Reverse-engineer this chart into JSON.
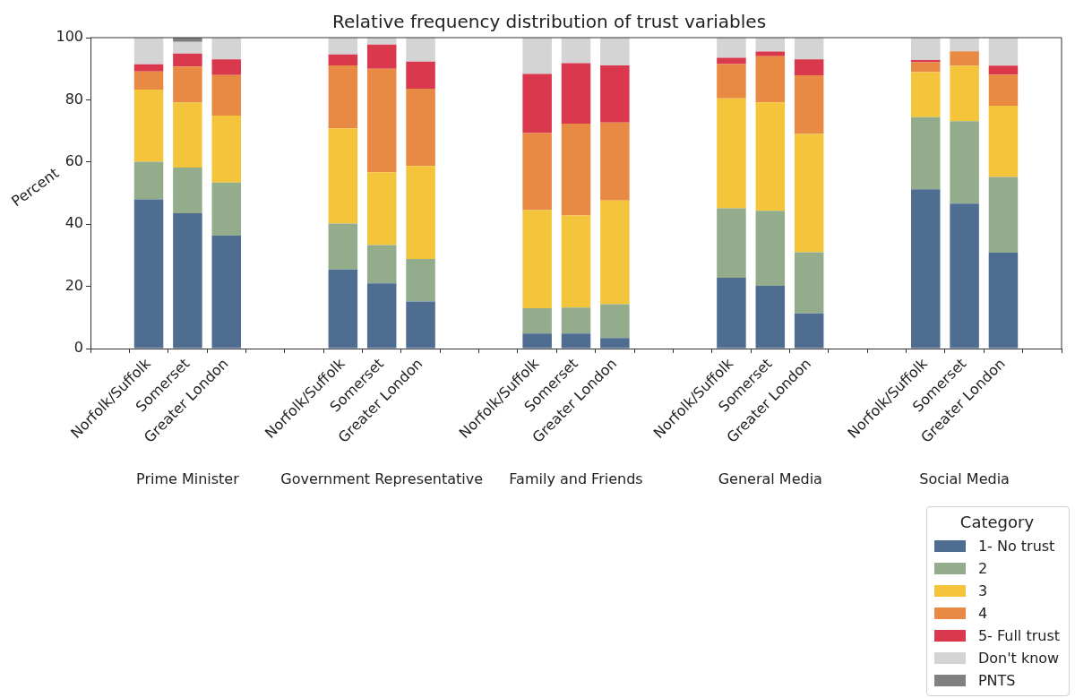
{
  "chart_data": {
    "type": "bar",
    "stacked": true,
    "title": "Relative frequency distribution of trust variables",
    "ylabel": "Percent",
    "legend_title": "Category",
    "legend": "bottom right",
    "categories": [
      null,
      "Norfolk/Suffolk",
      "Somerset",
      "Greater London",
      null,
      null,
      "Norfolk/Suffolk",
      "Somerset",
      "Greater London",
      null,
      null,
      "Norfolk/Suffolk",
      "Somerset",
      "Greater London",
      null,
      null,
      "Norfolk/Suffolk",
      "Somerset",
      "Greater London",
      null,
      null,
      "Norfolk/Suffolk",
      "Somerset",
      "Greater London",
      null
    ],
    "annotations": [
      "Prime Minister",
      "Government Representative",
      "Family and Friends",
      "General Media",
      "Social Media"
    ],
    "ylim": [
      0,
      100
    ],
    "yticks": [
      0,
      20,
      40,
      60,
      80,
      100
    ],
    "grid": false,
    "series": [
      {
        "name": "1- No trust",
        "color": "#4f6d91",
        "values": [
          null,
          48.0,
          43.5,
          36.3,
          null,
          null,
          25.4,
          21.0,
          15.1,
          null,
          null,
          4.8,
          4.8,
          3.4,
          null,
          null,
          22.8,
          20.2,
          11.3,
          null,
          null,
          51.2,
          46.6,
          30.8,
          null
        ]
      },
      {
        "name": "2",
        "color": "#93ad8c",
        "values": [
          null,
          12.1,
          14.7,
          17.1,
          null,
          null,
          14.8,
          12.3,
          13.7,
          null,
          null,
          8.2,
          8.4,
          10.9,
          null,
          null,
          22.3,
          24.1,
          19.7,
          null,
          null,
          23.2,
          26.5,
          24.4,
          null
        ]
      },
      {
        "name": "3",
        "color": "#f4c53b",
        "values": [
          null,
          23.2,
          20.9,
          21.5,
          null,
          null,
          30.6,
          23.4,
          29.9,
          null,
          null,
          31.5,
          29.6,
          33.3,
          null,
          null,
          35.4,
          34.9,
          38.0,
          null,
          null,
          14.5,
          17.8,
          22.9,
          null
        ]
      },
      {
        "name": "4",
        "color": "#e88a43",
        "values": [
          null,
          5.8,
          11.6,
          13.1,
          null,
          null,
          20.3,
          33.3,
          24.9,
          null,
          null,
          24.8,
          29.5,
          25.1,
          null,
          null,
          11.0,
          14.8,
          18.9,
          null,
          null,
          3.2,
          4.7,
          10.0,
          null
        ]
      },
      {
        "name": "5- Full trust",
        "color": "#da384d",
        "values": [
          null,
          2.3,
          4.2,
          5.0,
          null,
          null,
          3.5,
          7.8,
          8.7,
          null,
          null,
          19.0,
          19.5,
          18.4,
          null,
          null,
          2.0,
          1.5,
          5.1,
          null,
          null,
          0.7,
          0,
          2.9,
          null
        ]
      },
      {
        "name": "Don't know",
        "color": "#d4d4d4",
        "values": [
          null,
          8.6,
          3.7,
          7.0,
          null,
          null,
          5.4,
          2.2,
          7.7,
          null,
          null,
          11.7,
          8.2,
          8.9,
          null,
          null,
          6.5,
          4.5,
          7.0,
          null,
          null,
          7.2,
          4.4,
          9.0,
          null
        ]
      },
      {
        "name": "PNTS",
        "color": "#808080",
        "values": [
          null,
          0,
          1.4,
          0,
          null,
          null,
          0,
          0,
          0,
          null,
          null,
          0,
          0,
          0,
          null,
          null,
          0,
          0,
          0,
          null,
          null,
          0,
          0,
          0,
          null
        ]
      }
    ]
  }
}
